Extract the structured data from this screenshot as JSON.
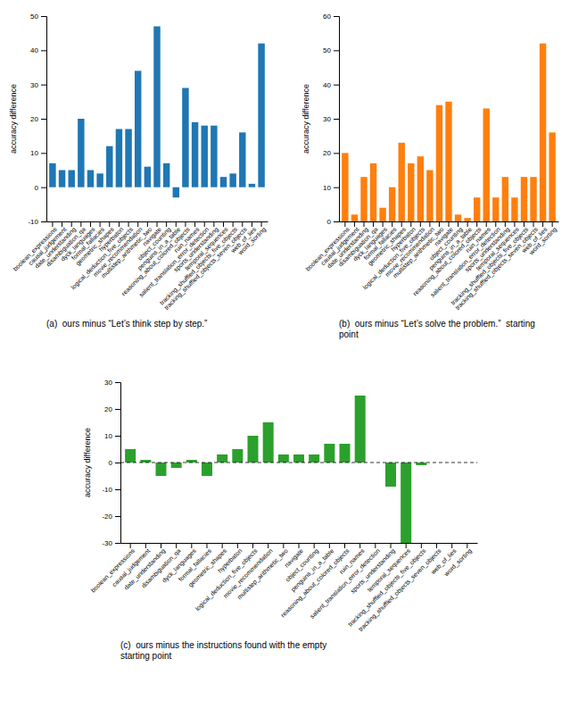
{
  "chart_data": [
    {
      "type": "bar",
      "title": "(a)  ours minus “Let’s think step by step.”",
      "y_label": "accuracy difference",
      "categories": [
        "boolean_expressions",
        "causal_judgement",
        "date_understanding",
        "disambiguation_qa",
        "dyck_languages",
        "formal_fallacies",
        "geometric_shapes",
        "hyperbaton",
        "logical_deduction_five_objects",
        "movie_recommendation",
        "multistep_arithmetic_two",
        "navigate",
        "object_counting",
        "penguins_in_a_table",
        "reasoning_about_colored_objects",
        "ruin_names",
        "salient_translation_error_detection",
        "sports_understanding",
        "temporal_sequences",
        "tracking_shuffled_objects_five_objects",
        "tracking_shuffled_objects_seven_objects",
        "web_of_lies",
        "word_sorting"
      ],
      "values": [
        7,
        5,
        5,
        20,
        5,
        4,
        12,
        17,
        17,
        34,
        6,
        47,
        7,
        -3,
        29,
        19,
        18,
        18,
        3,
        4,
        16,
        1,
        42
      ],
      "ylim": [
        -10,
        50
      ],
      "yticks": [
        -10,
        0,
        10,
        20,
        30,
        40,
        50
      ],
      "grid": false
    },
    {
      "type": "bar",
      "title": "(b)  ours minus “Let’s solve the problem.”  starting\npoint",
      "y_label": "accuracy difference",
      "categories": [
        "boolean_expressions",
        "causal_judgement",
        "date_understanding",
        "disambiguation_qa",
        "dyck_languages",
        "formal_fallacies",
        "geometric_shapes",
        "hyperbaton",
        "logical_deduction_five_objects",
        "movie_recommendation",
        "multistep_arithmetic_two",
        "navigate",
        "object_counting",
        "penguins_in_a_table",
        "reasoning_about_colored_objects",
        "ruin_names",
        "salient_translation_error_detection",
        "sports_understanding",
        "temporal_sequences",
        "tracking_shuffled_objects_five_objects",
        "tracking_shuffled_objects_seven_objects",
        "web_of_lies",
        "word_sorting"
      ],
      "values": [
        20,
        2,
        13,
        17,
        4,
        10,
        23,
        17,
        19,
        15,
        34,
        35,
        2,
        1,
        7,
        33,
        7,
        13,
        7,
        13,
        13,
        52,
        26
      ],
      "ylim": [
        0,
        60
      ],
      "yticks": [
        0,
        10,
        20,
        30,
        40,
        50,
        60
      ],
      "grid": false
    },
    {
      "type": "bar",
      "title": "(c)  ours minus the instructions found with the empty\nstarting point",
      "y_label": "accuracy difference",
      "categories": [
        "boolean_expressions",
        "causal_judgement",
        "date_understanding",
        "disambiguation_qa",
        "dyck_languages",
        "formal_fallacies",
        "geometric_shapes",
        "hyperbaton",
        "logical_deduction_five_objects",
        "movie_recommendation",
        "multistep_arithmetic_two",
        "navigate",
        "object_counting",
        "penguins_in_a_table",
        "reasoning_about_colored_objects",
        "ruin_names",
        "salient_translation_error_detection",
        "sports_understanding",
        "temporal_sequences",
        "tracking_shuffled_objects_five_objects",
        "tracking_shuffled_objects_seven_objects",
        "web_of_lies",
        "word_sorting"
      ],
      "values": [
        5,
        1,
        -5,
        -2,
        1,
        -5,
        3,
        5,
        10,
        15,
        3,
        3,
        3,
        7,
        7,
        25,
        0,
        -9,
        -30,
        -1,
        0,
        0,
        0
      ],
      "ylim": [
        -30,
        30
      ],
      "yticks": [
        -30,
        -20,
        -10,
        0,
        10,
        20,
        30
      ],
      "hline": 0,
      "grid": false
    }
  ]
}
